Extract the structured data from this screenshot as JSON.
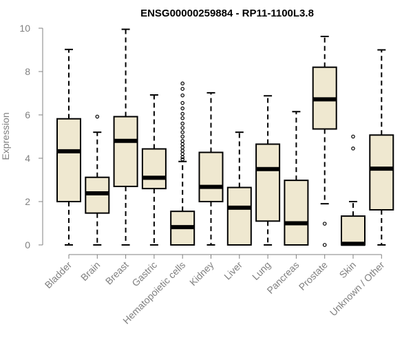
{
  "chart_data": {
    "type": "boxplot",
    "title": "ENSG00000259884 - RP11-1100L3.8",
    "xlabel": "",
    "ylabel": "Expression",
    "ylim": [
      0,
      10
    ],
    "yticks": [
      "0",
      "2",
      "4",
      "6",
      "8",
      "10"
    ],
    "box_color": "#efe8d0",
    "categories": [
      "Bladder",
      "Brain",
      "Breast",
      "Gastric",
      "Hematopoietic cells",
      "Kidney",
      "Liver",
      "Lung",
      "Pancreas",
      "Prostate",
      "Skin",
      "Unknown / Other"
    ],
    "boxes": [
      {
        "min": 0,
        "q1": 2.0,
        "median": 4.32,
        "q3": 5.82,
        "max": 9.02,
        "outliers": []
      },
      {
        "min": 0,
        "q1": 1.47,
        "median": 2.38,
        "q3": 3.12,
        "max": 5.2,
        "outliers": [
          5.92
        ]
      },
      {
        "min": 0,
        "q1": 2.7,
        "median": 4.8,
        "q3": 5.92,
        "max": 9.95,
        "outliers": []
      },
      {
        "min": 0,
        "q1": 2.6,
        "median": 3.1,
        "q3": 4.43,
        "max": 6.92,
        "outliers": []
      },
      {
        "min": 0,
        "q1": 0,
        "median": 0.82,
        "q3": 1.55,
        "max": 3.85,
        "outliers": [
          3.95,
          4.05,
          4.2,
          4.35,
          4.5,
          4.65,
          4.8,
          5.0,
          5.2,
          5.4,
          5.6,
          5.85,
          6.05,
          6.3,
          6.55,
          6.9,
          7.2,
          7.45
        ]
      },
      {
        "min": 0,
        "q1": 2.0,
        "median": 2.68,
        "q3": 4.27,
        "max": 7.02,
        "outliers": []
      },
      {
        "min": 0,
        "q1": 0,
        "median": 1.72,
        "q3": 2.65,
        "max": 5.2,
        "outliers": []
      },
      {
        "min": 0,
        "q1": 1.1,
        "median": 3.5,
        "q3": 4.65,
        "max": 6.88,
        "outliers": []
      },
      {
        "min": 0,
        "q1": 0,
        "median": 1.0,
        "q3": 2.98,
        "max": 6.15,
        "outliers": []
      },
      {
        "min": 1.9,
        "q1": 5.35,
        "median": 6.72,
        "q3": 8.2,
        "max": 9.62,
        "outliers": [
          0,
          0.98
        ]
      },
      {
        "min": 0,
        "q1": 0,
        "median": 0.05,
        "q3": 1.33,
        "max": 2.0,
        "outliers": [
          4.45,
          5.0
        ]
      },
      {
        "min": 0,
        "q1": 1.62,
        "median": 3.52,
        "q3": 5.07,
        "max": 9.0,
        "outliers": []
      }
    ]
  }
}
